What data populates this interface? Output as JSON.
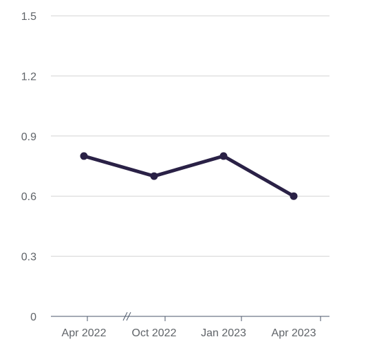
{
  "chart_data": {
    "type": "line",
    "title": "",
    "xlabel": "",
    "ylabel": "",
    "x": [
      "Apr 2022",
      "Oct 2022",
      "Jan 2023",
      "Apr 2023"
    ],
    "series": [
      {
        "values": [
          0.8,
          0.7,
          0.8,
          0.6
        ],
        "color": "#2a2146"
      }
    ],
    "ylim": [
      0,
      1.5
    ],
    "yticks": [
      "0",
      "0.3",
      "0.6",
      "0.9",
      "1.2",
      "1.5"
    ],
    "grid": true,
    "axis_break": true,
    "legend": "none"
  }
}
